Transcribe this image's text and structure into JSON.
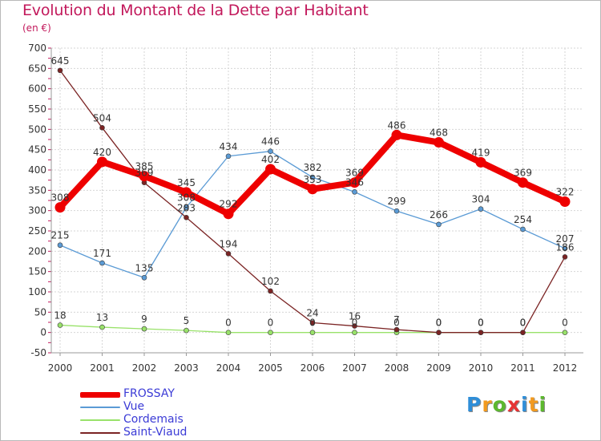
{
  "chart_data": {
    "type": "line",
    "title": "Evolution du Montant de la Dette par Habitant",
    "subtitle": "(en €)",
    "xlabel": "",
    "ylabel": "",
    "x": [
      "2000",
      "2001",
      "2002",
      "2003",
      "2004",
      "2005",
      "2006",
      "2007",
      "2008",
      "2009",
      "2010",
      "2011",
      "2012"
    ],
    "ylim": [
      -50,
      700
    ],
    "yticks": [
      -50,
      0,
      50,
      100,
      150,
      200,
      250,
      300,
      350,
      400,
      450,
      500,
      550,
      600,
      650,
      700
    ],
    "grid": true,
    "legend_position": "bottom-left",
    "series": [
      {
        "name": "FROSSAY",
        "color": "#ee0000",
        "values": [
          308,
          420,
          385,
          345,
          292,
          402,
          353,
          369,
          486,
          468,
          419,
          369,
          322
        ],
        "labels": [
          "308",
          "420",
          "385",
          "345",
          "292",
          "402",
          "353",
          "369",
          "486",
          "468",
          "419",
          "369",
          "322"
        ]
      },
      {
        "name": "Vue",
        "color": "#5b9bd5",
        "values": [
          215,
          171,
          135,
          308,
          434,
          446,
          382,
          346,
          299,
          266,
          304,
          254,
          207
        ],
        "labels": [
          "215",
          "171",
          "135",
          "308",
          "434",
          "446",
          "382",
          "346",
          "299",
          "266",
          "304",
          "254",
          "207"
        ]
      },
      {
        "name": "Cordemais",
        "color": "#99e26a",
        "values": [
          18,
          13,
          9,
          5,
          0,
          0,
          0,
          0,
          0,
          0,
          0,
          0,
          0
        ],
        "labels": [
          "18",
          "13",
          "9",
          "5",
          "0",
          "0",
          "0",
          "0",
          "0",
          "0",
          "0",
          "0",
          "0"
        ]
      },
      {
        "name": "Saint-Viaud",
        "color": "#7b2424",
        "values": [
          645,
          504,
          369,
          283,
          194,
          102,
          24,
          16,
          7,
          0,
          0,
          0,
          186
        ],
        "labels": [
          "645",
          "504",
          "369",
          "283",
          "194",
          "102",
          "24",
          "16",
          "7",
          "0",
          "0",
          "0",
          "186"
        ]
      }
    ]
  },
  "brand": {
    "logo_letters": [
      "P",
      "r",
      "o",
      "x",
      "i",
      "t",
      "i"
    ],
    "logo_colors": [
      "#2f8ed8",
      "#f29a1f",
      "#5cb82e",
      "#e63434",
      "#2f8ed8",
      "#f29a1f",
      "#5cb82e"
    ]
  }
}
